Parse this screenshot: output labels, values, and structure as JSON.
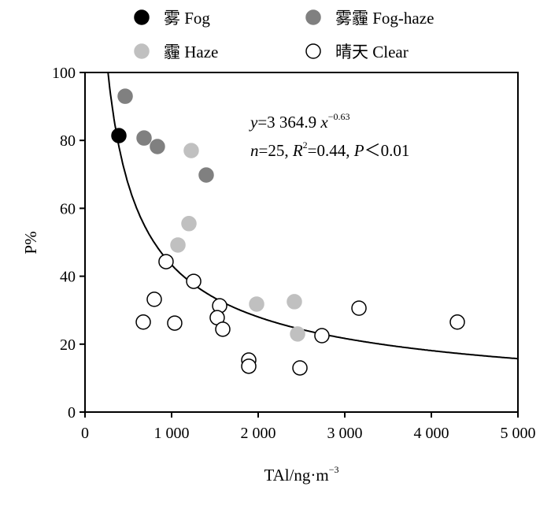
{
  "chart_data": {
    "type": "scatter",
    "xlabel": "TAl/ng·m",
    "xlabel_sup": "−3",
    "ylabel": "P%",
    "xlim": [
      0,
      5000
    ],
    "ylim": [
      0,
      100
    ],
    "xticks": [
      0,
      1000,
      2000,
      3000,
      4000,
      5000
    ],
    "xtick_labels": [
      "0",
      "1 000",
      "2 000",
      "3 000",
      "4 000",
      "5 000"
    ],
    "yticks": [
      0,
      20,
      40,
      60,
      80,
      100
    ],
    "ytick_labels": [
      "0",
      "20",
      "40",
      "60",
      "80",
      "100"
    ],
    "grid": false,
    "legend_placement": "top",
    "series": [
      {
        "name": "雾 Fog",
        "color": "#000000",
        "stroke": "#000000",
        "points": [
          [
            391,
            81.4
          ]
        ]
      },
      {
        "name": "雾霾 Fog-haze",
        "color": "#808080",
        "stroke": "#808080",
        "points": [
          [
            464,
            93
          ],
          [
            682,
            80.7
          ],
          [
            836,
            78.2
          ],
          [
            1400,
            69.8
          ]
        ]
      },
      {
        "name": "霾 Haze",
        "color": "#c0c0c0",
        "stroke": "#c0c0c0",
        "points": [
          [
            1227,
            77
          ],
          [
            1200,
            55.5
          ],
          [
            1073,
            49.2
          ],
          [
            1982,
            31.8
          ],
          [
            2418,
            32.5
          ],
          [
            2455,
            23
          ]
        ]
      },
      {
        "name": "晴天 Clear",
        "color": "#ffffff",
        "stroke": "#000000",
        "points": [
          [
            936,
            44.3
          ],
          [
            1255,
            38.5
          ],
          [
            800,
            33.2
          ],
          [
            673,
            26.5
          ],
          [
            1036,
            26.2
          ],
          [
            1555,
            31.3
          ],
          [
            1527,
            27.8
          ],
          [
            1591,
            24.4
          ],
          [
            1891,
            15.3
          ],
          [
            1891,
            13.5
          ],
          [
            2736,
            22.5
          ],
          [
            2482,
            13
          ],
          [
            3164,
            30.6
          ],
          [
            4300,
            26.5
          ]
        ]
      }
    ],
    "fit": {
      "a": 3364.9,
      "b": -0.63,
      "x_range": [
        265,
        5000
      ]
    },
    "annotations": {
      "eq_y": "y",
      "eq_mid": "=3 364.9 ",
      "eq_x": "x",
      "eq_exp": "−0.63",
      "stat_n": "n",
      "stat_n_val": "=25, ",
      "stat_R": "R",
      "stat_R_sup": "2",
      "stat_R_val": "=0.44, ",
      "stat_P": "P",
      "stat_P_val": "＜0.01"
    }
  }
}
